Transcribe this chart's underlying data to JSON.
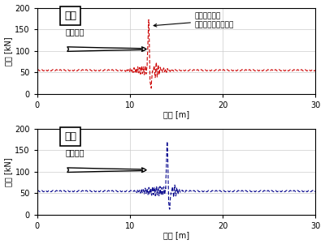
{
  "top_label": "前軸",
  "bottom_label": "後軸",
  "ylabel": "輪重 [kN]",
  "xlabel": "距離 [m]",
  "direction_label": "進行方向",
  "annotation_text": "レール端部の\n落ち込みよるピーク",
  "xlim": [
    0,
    30
  ],
  "ylim": [
    0,
    200
  ],
  "yticks": [
    0,
    50,
    100,
    150,
    200
  ],
  "xticks": [
    0,
    10,
    20,
    30
  ],
  "baseline": 55,
  "top_peak_x": 12.0,
  "bottom_peak_x": 14.0,
  "top_color": "#cc0000",
  "bottom_color": "#00008b",
  "top_noise_center": 12.0,
  "bottom_noise_center": 13.0,
  "figsize": [
    4.0,
    3.01
  ],
  "dpi": 100
}
